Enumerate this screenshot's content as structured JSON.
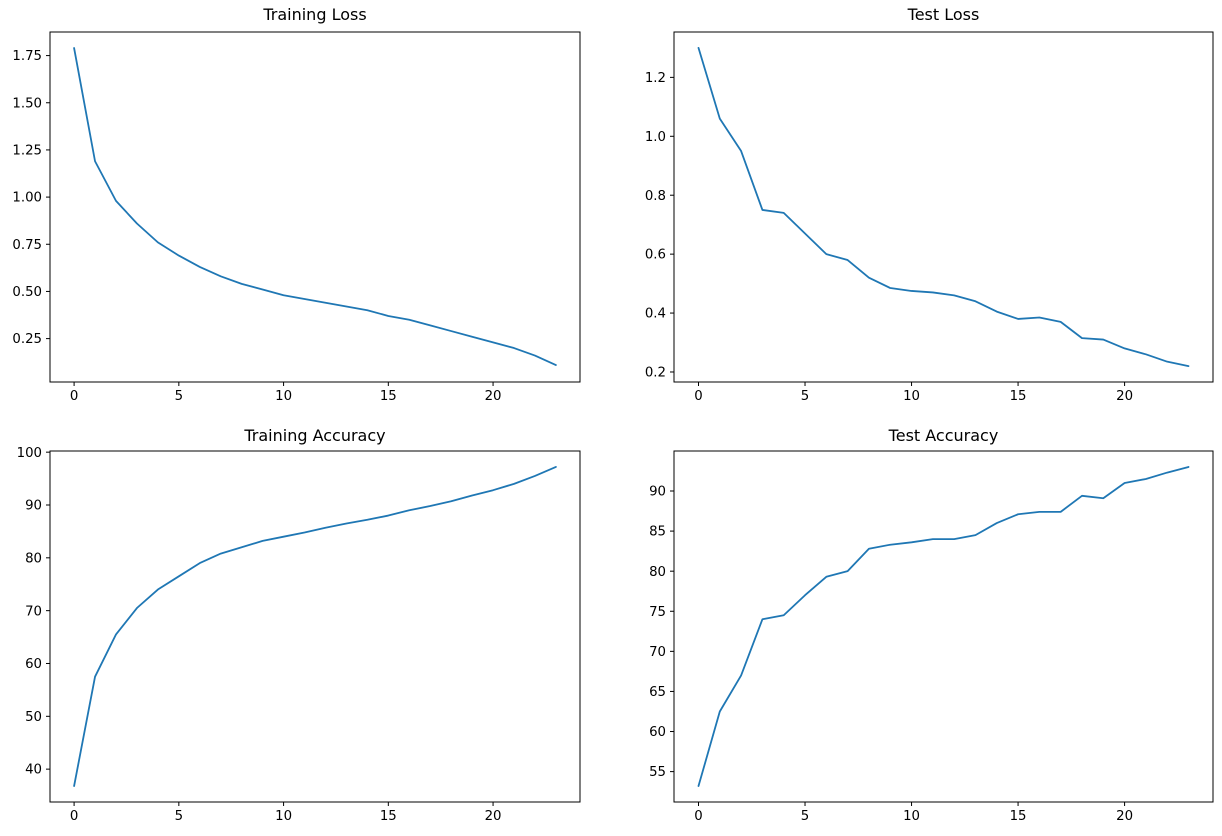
{
  "figure": {
    "background": "#ffffff",
    "line_color": "#1f77b4",
    "spine_color": "#000000",
    "text_color": "#000000"
  },
  "chart_data": [
    {
      "id": "training-loss",
      "type": "line",
      "title": "Training Loss",
      "xlabel": "",
      "ylabel": "",
      "grid": false,
      "legend": "none",
      "x": [
        0,
        1,
        2,
        3,
        4,
        5,
        6,
        7,
        8,
        9,
        10,
        11,
        12,
        13,
        14,
        15,
        16,
        17,
        18,
        19,
        20,
        21,
        22,
        23
      ],
      "values": [
        1.79,
        1.19,
        0.98,
        0.86,
        0.76,
        0.69,
        0.63,
        0.58,
        0.54,
        0.51,
        0.48,
        0.46,
        0.44,
        0.42,
        0.4,
        0.37,
        0.35,
        0.32,
        0.29,
        0.26,
        0.23,
        0.2,
        0.16,
        0.11
      ],
      "xlim": [
        -1.15,
        24.15
      ],
      "ylim": [
        0.02,
        1.875
      ],
      "xticks": [
        0,
        5,
        10,
        15,
        20
      ],
      "xtick_labels": [
        "0",
        "5",
        "10",
        "15",
        "20"
      ],
      "yticks": [
        0.25,
        0.5,
        0.75,
        1.0,
        1.25,
        1.5,
        1.75
      ],
      "ytick_labels": [
        "0.25",
        "0.50",
        "0.75",
        "1.00",
        "1.25",
        "1.50",
        "1.75"
      ]
    },
    {
      "id": "test-loss",
      "type": "line",
      "title": "Test Loss",
      "xlabel": "",
      "ylabel": "",
      "grid": false,
      "legend": "none",
      "x": [
        0,
        1,
        2,
        3,
        4,
        5,
        6,
        7,
        8,
        9,
        10,
        11,
        12,
        13,
        14,
        15,
        16,
        17,
        18,
        19,
        20,
        21,
        22,
        23
      ],
      "values": [
        1.3,
        1.06,
        0.95,
        0.75,
        0.74,
        0.67,
        0.6,
        0.58,
        0.52,
        0.485,
        0.475,
        0.47,
        0.46,
        0.44,
        0.405,
        0.38,
        0.385,
        0.37,
        0.315,
        0.31,
        0.28,
        0.26,
        0.235,
        0.22
      ],
      "xlim": [
        -1.15,
        24.15
      ],
      "ylim": [
        0.166,
        1.354
      ],
      "xticks": [
        0,
        5,
        10,
        15,
        20
      ],
      "xtick_labels": [
        "0",
        "5",
        "10",
        "15",
        "20"
      ],
      "yticks": [
        0.2,
        0.4,
        0.6,
        0.8,
        1.0,
        1.2
      ],
      "ytick_labels": [
        "0.2",
        "0.4",
        "0.6",
        "0.8",
        "1.0",
        "1.2"
      ]
    },
    {
      "id": "training-accuracy",
      "type": "line",
      "title": "Training Accuracy",
      "xlabel": "",
      "ylabel": "",
      "grid": false,
      "legend": "none",
      "x": [
        0,
        1,
        2,
        3,
        4,
        5,
        6,
        7,
        8,
        9,
        10,
        11,
        12,
        13,
        14,
        15,
        16,
        17,
        18,
        19,
        20,
        21,
        22,
        23
      ],
      "values": [
        36.8,
        57.5,
        65.5,
        70.5,
        74.0,
        76.5,
        79.0,
        80.8,
        82.0,
        83.2,
        84.0,
        84.8,
        85.7,
        86.5,
        87.2,
        88.0,
        89.0,
        89.8,
        90.7,
        91.8,
        92.8,
        94.0,
        95.5,
        97.2
      ],
      "xlim": [
        -1.15,
        24.15
      ],
      "ylim": [
        33.78,
        100.22
      ],
      "xticks": [
        0,
        5,
        10,
        15,
        20
      ],
      "xtick_labels": [
        "0",
        "5",
        "10",
        "15",
        "20"
      ],
      "yticks": [
        40,
        50,
        60,
        70,
        80,
        90,
        100
      ],
      "ytick_labels": [
        "40",
        "50",
        "60",
        "70",
        "80",
        "90",
        "100"
      ]
    },
    {
      "id": "test-accuracy",
      "type": "line",
      "title": "Test Accuracy",
      "xlabel": "",
      "ylabel": "",
      "grid": false,
      "legend": "none",
      "x": [
        0,
        1,
        2,
        3,
        4,
        5,
        6,
        7,
        8,
        9,
        10,
        11,
        12,
        13,
        14,
        15,
        16,
        17,
        18,
        19,
        20,
        21,
        22,
        23
      ],
      "values": [
        53.2,
        62.5,
        67.0,
        74.0,
        74.5,
        77.0,
        79.3,
        80.0,
        82.8,
        83.3,
        83.6,
        84.0,
        84.0,
        84.5,
        86.0,
        87.1,
        87.4,
        87.4,
        89.4,
        89.1,
        91.0,
        91.5,
        92.3,
        93.0
      ],
      "xlim": [
        -1.15,
        24.15
      ],
      "ylim": [
        51.21,
        94.99
      ],
      "xticks": [
        0,
        5,
        10,
        15,
        20
      ],
      "xtick_labels": [
        "0",
        "5",
        "10",
        "15",
        "20"
      ],
      "yticks": [
        55,
        60,
        65,
        70,
        75,
        80,
        85,
        90
      ],
      "ytick_labels": [
        "55",
        "60",
        "65",
        "70",
        "75",
        "80",
        "85",
        "90"
      ]
    }
  ]
}
